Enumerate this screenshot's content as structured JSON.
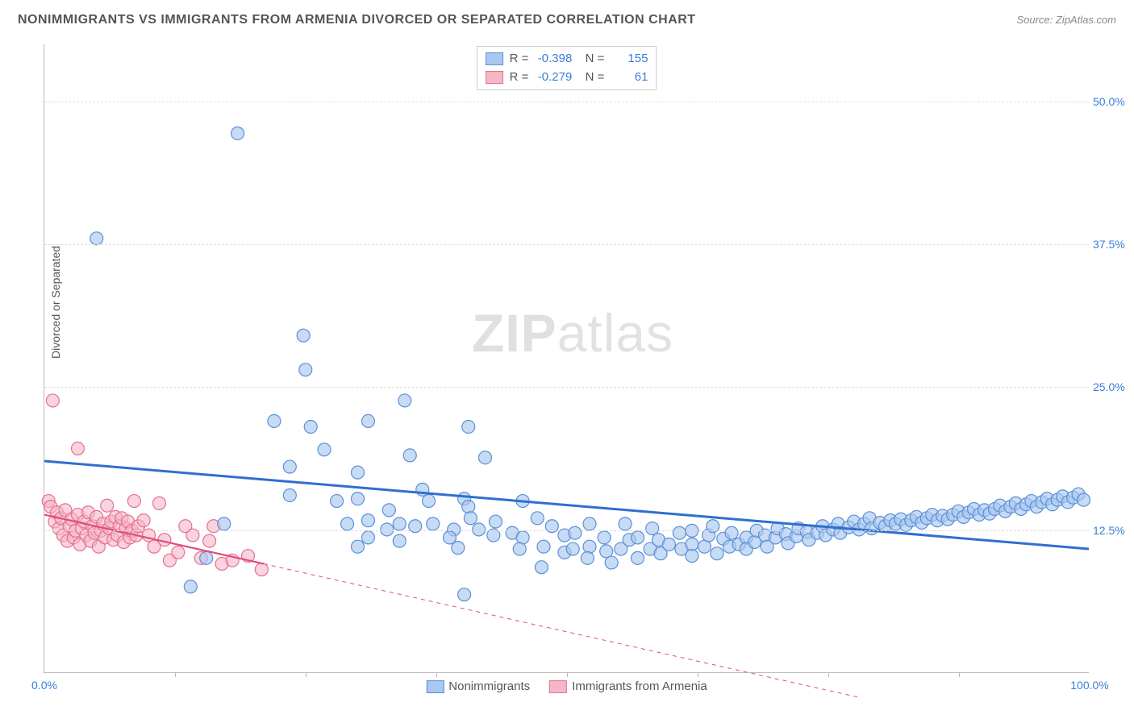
{
  "title": "NONIMMIGRANTS VS IMMIGRANTS FROM ARMENIA DIVORCED OR SEPARATED CORRELATION CHART",
  "source": "Source: ZipAtlas.com",
  "y_axis_label": "Divorced or Separated",
  "watermark_left": "ZIP",
  "watermark_right": "atlas",
  "x_ticks": [
    {
      "pos": 0.0,
      "label": "0.0%"
    },
    {
      "pos": 1.0,
      "label": "100.0%"
    }
  ],
  "x_tick_marks": [
    0.125,
    0.25,
    0.375,
    0.5,
    0.625,
    0.75,
    0.875
  ],
  "y_ticks": [
    {
      "pos": 0.125,
      "label": "12.5%"
    },
    {
      "pos": 0.25,
      "label": "25.0%"
    },
    {
      "pos": 0.375,
      "label": "37.5%"
    },
    {
      "pos": 0.5,
      "label": "50.0%"
    }
  ],
  "y_gridlines": [
    0.125,
    0.25,
    0.375,
    0.5
  ],
  "ylim": [
    0.0,
    0.55
  ],
  "xlim": [
    0.0,
    1.0
  ],
  "series": {
    "blue": {
      "name": "Nonimmigrants",
      "fill": "#a9c8ef",
      "stroke": "#5a90d6",
      "fill_opacity": 0.65,
      "R": "-0.398",
      "N": "155",
      "trend": {
        "x1": 0.0,
        "y1": 0.185,
        "x2": 1.0,
        "y2": 0.108,
        "color": "#2f6fd0",
        "width": 3,
        "dash": "none",
        "extrapolate": false
      },
      "marker_r": 8,
      "points": [
        [
          0.05,
          0.38
        ],
        [
          0.185,
          0.472
        ],
        [
          0.248,
          0.295
        ],
        [
          0.25,
          0.265
        ],
        [
          0.22,
          0.22
        ],
        [
          0.255,
          0.215
        ],
        [
          0.31,
          0.22
        ],
        [
          0.235,
          0.18
        ],
        [
          0.268,
          0.195
        ],
        [
          0.28,
          0.15
        ],
        [
          0.3,
          0.175
        ],
        [
          0.235,
          0.155
        ],
        [
          0.3,
          0.152
        ],
        [
          0.29,
          0.13
        ],
        [
          0.31,
          0.133
        ],
        [
          0.345,
          0.238
        ],
        [
          0.35,
          0.19
        ],
        [
          0.33,
          0.142
        ],
        [
          0.362,
          0.16
        ],
        [
          0.368,
          0.15
        ],
        [
          0.34,
          0.13
        ],
        [
          0.3,
          0.11
        ],
        [
          0.31,
          0.118
        ],
        [
          0.34,
          0.115
        ],
        [
          0.328,
          0.125
        ],
        [
          0.355,
          0.128
        ],
        [
          0.372,
          0.13
        ],
        [
          0.392,
          0.125
        ],
        [
          0.406,
          0.215
        ],
        [
          0.402,
          0.152
        ],
        [
          0.406,
          0.145
        ],
        [
          0.408,
          0.135
        ],
        [
          0.416,
          0.125
        ],
        [
          0.396,
          0.109
        ],
        [
          0.388,
          0.118
        ],
        [
          0.422,
          0.188
        ],
        [
          0.432,
          0.132
        ],
        [
          0.43,
          0.12
        ],
        [
          0.448,
          0.122
        ],
        [
          0.458,
          0.118
        ],
        [
          0.402,
          0.068
        ],
        [
          0.455,
          0.108
        ],
        [
          0.458,
          0.15
        ],
        [
          0.472,
          0.135
        ],
        [
          0.478,
          0.11
        ],
        [
          0.486,
          0.128
        ],
        [
          0.498,
          0.105
        ],
        [
          0.498,
          0.12
        ],
        [
          0.508,
          0.122
        ],
        [
          0.506,
          0.108
        ],
        [
          0.522,
          0.13
        ],
        [
          0.522,
          0.11
        ],
        [
          0.52,
          0.1
        ],
        [
          0.536,
          0.118
        ],
        [
          0.538,
          0.106
        ],
        [
          0.543,
          0.096
        ],
        [
          0.552,
          0.108
        ],
        [
          0.556,
          0.13
        ],
        [
          0.56,
          0.116
        ],
        [
          0.568,
          0.118
        ],
        [
          0.568,
          0.1
        ],
        [
          0.58,
          0.108
        ],
        [
          0.582,
          0.126
        ],
        [
          0.588,
          0.116
        ],
        [
          0.59,
          0.104
        ],
        [
          0.598,
          0.112
        ],
        [
          0.608,
          0.122
        ],
        [
          0.61,
          0.108
        ],
        [
          0.62,
          0.112
        ],
        [
          0.62,
          0.102
        ],
        [
          0.62,
          0.124
        ],
        [
          0.632,
          0.11
        ],
        [
          0.636,
          0.12
        ],
        [
          0.64,
          0.128
        ],
        [
          0.644,
          0.104
        ],
        [
          0.65,
          0.117
        ],
        [
          0.656,
          0.11
        ],
        [
          0.658,
          0.122
        ],
        [
          0.665,
          0.112
        ],
        [
          0.672,
          0.118
        ],
        [
          0.672,
          0.108
        ],
        [
          0.68,
          0.114
        ],
        [
          0.682,
          0.124
        ],
        [
          0.69,
          0.12
        ],
        [
          0.692,
          0.11
        ],
        [
          0.7,
          0.118
        ],
        [
          0.702,
          0.126
        ],
        [
          0.71,
          0.121
        ],
        [
          0.712,
          0.113
        ],
        [
          0.72,
          0.119
        ],
        [
          0.722,
          0.126
        ],
        [
          0.73,
          0.123
        ],
        [
          0.732,
          0.116
        ],
        [
          0.74,
          0.122
        ],
        [
          0.745,
          0.128
        ],
        [
          0.748,
          0.12
        ],
        [
          0.755,
          0.125
        ],
        [
          0.76,
          0.13
        ],
        [
          0.762,
          0.122
        ],
        [
          0.77,
          0.127
        ],
        [
          0.775,
          0.132
        ],
        [
          0.78,
          0.125
        ],
        [
          0.785,
          0.13
        ],
        [
          0.79,
          0.135
        ],
        [
          0.792,
          0.126
        ],
        [
          0.8,
          0.131
        ],
        [
          0.805,
          0.128
        ],
        [
          0.81,
          0.133
        ],
        [
          0.815,
          0.13
        ],
        [
          0.82,
          0.134
        ],
        [
          0.825,
          0.129
        ],
        [
          0.83,
          0.133
        ],
        [
          0.835,
          0.136
        ],
        [
          0.84,
          0.131
        ],
        [
          0.845,
          0.135
        ],
        [
          0.85,
          0.138
        ],
        [
          0.855,
          0.133
        ],
        [
          0.86,
          0.137
        ],
        [
          0.865,
          0.134
        ],
        [
          0.87,
          0.138
        ],
        [
          0.875,
          0.141
        ],
        [
          0.88,
          0.136
        ],
        [
          0.885,
          0.14
        ],
        [
          0.89,
          0.143
        ],
        [
          0.895,
          0.138
        ],
        [
          0.9,
          0.142
        ],
        [
          0.905,
          0.139
        ],
        [
          0.91,
          0.143
        ],
        [
          0.915,
          0.146
        ],
        [
          0.92,
          0.141
        ],
        [
          0.925,
          0.145
        ],
        [
          0.93,
          0.148
        ],
        [
          0.935,
          0.143
        ],
        [
          0.94,
          0.147
        ],
        [
          0.945,
          0.15
        ],
        [
          0.95,
          0.145
        ],
        [
          0.955,
          0.149
        ],
        [
          0.96,
          0.152
        ],
        [
          0.965,
          0.147
        ],
        [
          0.97,
          0.151
        ],
        [
          0.975,
          0.154
        ],
        [
          0.98,
          0.149
        ],
        [
          0.985,
          0.153
        ],
        [
          0.99,
          0.156
        ],
        [
          0.995,
          0.151
        ],
        [
          0.14,
          0.075
        ],
        [
          0.155,
          0.1
        ],
        [
          0.172,
          0.13
        ],
        [
          0.476,
          0.092
        ]
      ]
    },
    "pink": {
      "name": "Immigrants from Armenia",
      "fill": "#f5b6c6",
      "stroke": "#e66f92",
      "fill_opacity": 0.6,
      "R": "-0.279",
      "N": "61",
      "trend": {
        "x1": 0.0,
        "y1": 0.138,
        "x2": 0.21,
        "y2": 0.095,
        "color": "#e24d7a",
        "width": 2.2,
        "dash": "none",
        "extrapolate": true,
        "ex_x2": 0.78,
        "ex_y2": -0.022
      },
      "marker_r": 8,
      "points": [
        [
          0.008,
          0.238
        ],
        [
          0.004,
          0.15
        ],
        [
          0.006,
          0.145
        ],
        [
          0.01,
          0.132
        ],
        [
          0.012,
          0.14
        ],
        [
          0.014,
          0.126
        ],
        [
          0.016,
          0.135
        ],
        [
          0.018,
          0.12
        ],
        [
          0.02,
          0.142
        ],
        [
          0.022,
          0.115
        ],
        [
          0.024,
          0.128
        ],
        [
          0.026,
          0.134
        ],
        [
          0.028,
          0.118
        ],
        [
          0.03,
          0.124
        ],
        [
          0.032,
          0.138
        ],
        [
          0.034,
          0.112
        ],
        [
          0.036,
          0.126
        ],
        [
          0.038,
          0.132
        ],
        [
          0.04,
          0.12
        ],
        [
          0.042,
          0.14
        ],
        [
          0.044,
          0.115
        ],
        [
          0.046,
          0.128
        ],
        [
          0.048,
          0.122
        ],
        [
          0.05,
          0.136
        ],
        [
          0.052,
          0.11
        ],
        [
          0.054,
          0.124
        ],
        [
          0.056,
          0.13
        ],
        [
          0.032,
          0.196
        ],
        [
          0.058,
          0.118
        ],
        [
          0.06,
          0.146
        ],
        [
          0.062,
          0.126
        ],
        [
          0.064,
          0.132
        ],
        [
          0.066,
          0.116
        ],
        [
          0.068,
          0.136
        ],
        [
          0.07,
          0.12
        ],
        [
          0.072,
          0.128
        ],
        [
          0.074,
          0.135
        ],
        [
          0.076,
          0.114
        ],
        [
          0.078,
          0.126
        ],
        [
          0.08,
          0.132
        ],
        [
          0.082,
          0.118
        ],
        [
          0.084,
          0.124
        ],
        [
          0.086,
          0.15
        ],
        [
          0.088,
          0.12
        ],
        [
          0.09,
          0.128
        ],
        [
          0.095,
          0.133
        ],
        [
          0.1,
          0.12
        ],
        [
          0.105,
          0.11
        ],
        [
          0.11,
          0.148
        ],
        [
          0.115,
          0.116
        ],
        [
          0.12,
          0.098
        ],
        [
          0.128,
          0.105
        ],
        [
          0.135,
          0.128
        ],
        [
          0.142,
          0.12
        ],
        [
          0.15,
          0.1
        ],
        [
          0.158,
          0.115
        ],
        [
          0.162,
          0.128
        ],
        [
          0.17,
          0.095
        ],
        [
          0.18,
          0.098
        ],
        [
          0.195,
          0.102
        ],
        [
          0.208,
          0.09
        ]
      ]
    }
  },
  "bottom_legend": [
    {
      "swatch_fill": "#a9c8ef",
      "swatch_stroke": "#5a90d6",
      "label": "Nonimmigrants"
    },
    {
      "swatch_fill": "#f5b6c6",
      "swatch_stroke": "#e66f92",
      "label": "Immigrants from Armenia"
    }
  ],
  "colors": {
    "axis_text": "#3b7dd8",
    "grid": "#dddddd",
    "axis_line": "#bbbbbb"
  }
}
